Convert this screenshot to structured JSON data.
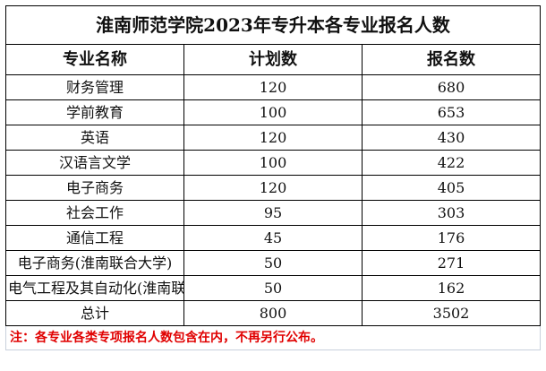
{
  "title": "淮南师范学院2023年专升本各专业报名人数",
  "headers": [
    "专业名称",
    "计划数",
    "报名数"
  ],
  "rows": [
    [
      "财务管理",
      "120",
      "680"
    ],
    [
      "学前教育",
      "100",
      "653"
    ],
    [
      "英语",
      "120",
      "430"
    ],
    [
      "汉语言文学",
      "100",
      "422"
    ],
    [
      "电子商务",
      "120",
      "405"
    ],
    [
      "社会工作",
      "95",
      "303"
    ],
    [
      "通信工程",
      "45",
      "176"
    ],
    [
      "电子商务(淮南联合大学)",
      "50",
      "271"
    ],
    [
      "电气工程及其自动化(淮南联合大学)",
      "50",
      "162"
    ],
    [
      "总计",
      "800",
      "3502"
    ]
  ],
  "note": "注：各专业各类专项报名人数包含在内，不再另行公布。",
  "colors": {
    "note": "#e00000"
  }
}
